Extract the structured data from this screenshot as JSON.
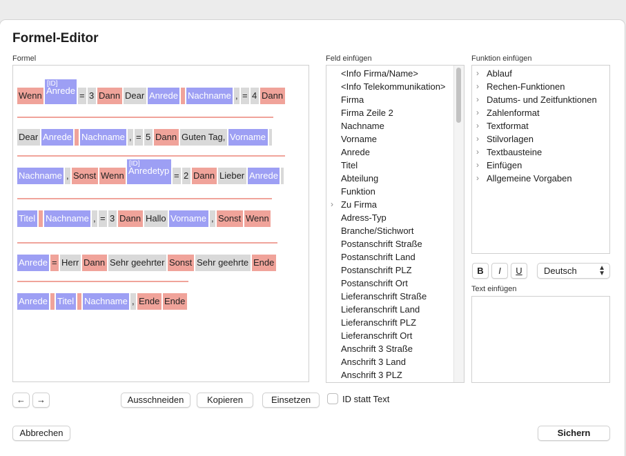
{
  "dialog": {
    "title": "Formel-Editor"
  },
  "labels": {
    "formula": "Formel",
    "field": "Feld einfügen",
    "function": "Funktion einfügen",
    "text": "Text einfügen"
  },
  "formula": {
    "lines": [
      [
        {
          "type": "k",
          "text": "Wenn"
        },
        {
          "type": "f",
          "text": "Anrede",
          "id": "[ID]"
        },
        {
          "type": "t",
          "text": "="
        },
        {
          "type": "t",
          "text": "3"
        },
        {
          "type": "k",
          "text": "Dann"
        },
        {
          "type": "t",
          "text": "Dear"
        },
        {
          "type": "f",
          "text": "Anrede"
        },
        {
          "type": "s"
        },
        {
          "type": "f",
          "text": "Nachname"
        },
        {
          "type": "t",
          "text": ","
        },
        {
          "type": "t",
          "text": "="
        },
        {
          "type": "t",
          "text": "4"
        },
        {
          "type": "k",
          "text": "Dann"
        }
      ],
      [
        {
          "type": "t",
          "text": "Dear"
        },
        {
          "type": "f",
          "text": "Anrede"
        },
        {
          "type": "s"
        },
        {
          "type": "f",
          "text": "Nachname"
        },
        {
          "type": "t",
          "text": ","
        },
        {
          "type": "t",
          "text": "="
        },
        {
          "type": "t",
          "text": "5"
        },
        {
          "type": "k",
          "text": "Dann"
        },
        {
          "type": "t",
          "text": "Guten Tag,"
        },
        {
          "type": "f",
          "text": "Vorname"
        },
        {
          "type": "t",
          "text": " "
        }
      ],
      [
        {
          "type": "f",
          "text": "Nachname"
        },
        {
          "type": "t",
          "text": ","
        },
        {
          "type": "k",
          "text": "Sonst"
        },
        {
          "type": "k",
          "text": "Wenn"
        },
        {
          "type": "f",
          "text": "Anredetyp",
          "id": "[ID]"
        },
        {
          "type": "t",
          "text": "="
        },
        {
          "type": "t",
          "text": "2"
        },
        {
          "type": "k",
          "text": "Dann"
        },
        {
          "type": "t",
          "text": "Lieber"
        },
        {
          "type": "f",
          "text": "Anrede"
        },
        {
          "type": "t",
          "text": " "
        }
      ],
      [
        {
          "type": "f",
          "text": "Titel"
        },
        {
          "type": "s"
        },
        {
          "type": "f",
          "text": "Nachname"
        },
        {
          "type": "t",
          "text": ","
        },
        {
          "type": "t",
          "text": "="
        },
        {
          "type": "t",
          "text": "3"
        },
        {
          "type": "k",
          "text": "Dann"
        },
        {
          "type": "t",
          "text": "Hallo"
        },
        {
          "type": "f",
          "text": "Vorname"
        },
        {
          "type": "t",
          "text": ","
        },
        {
          "type": "k",
          "text": "Sonst"
        },
        {
          "type": "k",
          "text": "Wenn"
        }
      ],
      [
        {
          "type": "f",
          "text": "Anrede"
        },
        {
          "type": "k",
          "text": "="
        },
        {
          "type": "t",
          "text": "Herr"
        },
        {
          "type": "k",
          "text": "Dann"
        },
        {
          "type": "t",
          "text": "Sehr geehrter"
        },
        {
          "type": "k",
          "text": "Sonst"
        },
        {
          "type": "t",
          "text": "Sehr geehrte"
        },
        {
          "type": "k",
          "text": "Ende"
        }
      ],
      [
        {
          "type": "f",
          "text": "Anrede"
        },
        {
          "type": "s"
        },
        {
          "type": "f",
          "text": "Titel"
        },
        {
          "type": "s"
        },
        {
          "type": "f",
          "text": "Nachname"
        },
        {
          "type": "t",
          "text": ","
        },
        {
          "type": "k",
          "text": "Ende"
        },
        {
          "type": "k",
          "text": "Ende"
        }
      ]
    ]
  },
  "fields": [
    {
      "label": "<Info Firma/Name>"
    },
    {
      "label": "<Info Telekommunikation>"
    },
    {
      "label": "Firma"
    },
    {
      "label": "Firma Zeile 2"
    },
    {
      "label": "Nachname"
    },
    {
      "label": "Vorname"
    },
    {
      "label": "Anrede"
    },
    {
      "label": "Titel"
    },
    {
      "label": "Abteilung"
    },
    {
      "label": "Funktion"
    },
    {
      "label": "Zu Firma",
      "expandable": true
    },
    {
      "label": "Adress-Typ"
    },
    {
      "label": "Branche/Stichwort"
    },
    {
      "label": "Postanschrift Straße"
    },
    {
      "label": "Postanschrift Land"
    },
    {
      "label": "Postanschrift PLZ"
    },
    {
      "label": "Postanschrift Ort"
    },
    {
      "label": "Lieferanschrift Straße"
    },
    {
      "label": "Lieferanschrift Land"
    },
    {
      "label": "Lieferanschrift PLZ"
    },
    {
      "label": "Lieferanschrift Ort"
    },
    {
      "label": "Anschrift 3 Straße"
    },
    {
      "label": "Anschrift 3 Land"
    },
    {
      "label": "Anschrift 3 PLZ"
    }
  ],
  "functions": [
    {
      "label": "Ablauf"
    },
    {
      "label": "Rechen-Funktionen"
    },
    {
      "label": "Datums- und Zeitfunktionen"
    },
    {
      "label": "Zahlenformat"
    },
    {
      "label": "Textformat"
    },
    {
      "label": "Stilvorlagen"
    },
    {
      "label": "Textbausteine"
    },
    {
      "label": "Einfügen"
    },
    {
      "label": "Allgemeine Vorgaben"
    }
  ],
  "format": {
    "bold": "B",
    "italic": "I",
    "underline": "U",
    "language": "Deutsch"
  },
  "buttons": {
    "back": "←",
    "forward": "→",
    "cut": "Ausschneiden",
    "copy": "Kopieren",
    "paste": "Einsetzen",
    "id_toggle": "ID statt Text",
    "cancel": "Abbrechen",
    "save": "Sichern"
  },
  "colors": {
    "keyword": "#f0a39a",
    "field": "#9d9ff4",
    "text": "#d9d9d9"
  }
}
